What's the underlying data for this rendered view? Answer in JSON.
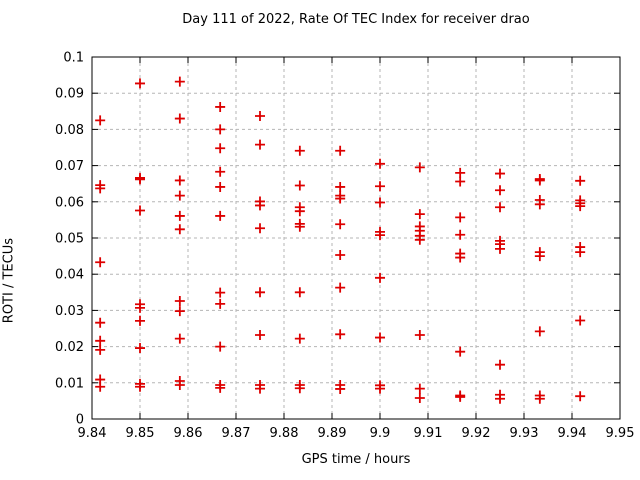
{
  "title": "Day 111 of 2022, Rate Of TEC Index for receiver drao",
  "chart_data": {
    "type": "scatter",
    "title": "Day 111 of 2022, Rate Of TEC Index for receiver drao",
    "xlabel": "GPS time / hours",
    "ylabel": "ROTI / TECUs",
    "xlim": [
      9.84,
      9.95
    ],
    "ylim": [
      0,
      0.1
    ],
    "x_ticks": [
      "9.84",
      "9.85",
      "9.86",
      "9.87",
      "9.88",
      "9.89",
      "9.9",
      "9.91",
      "9.92",
      "9.93",
      "9.94",
      "9.95"
    ],
    "y_ticks": [
      "0",
      "0.01",
      "0.02",
      "0.03",
      "0.04",
      "0.05",
      "0.06",
      "0.07",
      "0.08",
      "0.09",
      "0.1"
    ],
    "grid": true,
    "legend": "none",
    "marker": "plus",
    "marker_color": "#dd0000",
    "grid_color": "#b5b5b5",
    "series": [
      {
        "name": "ROTI",
        "points": [
          [
            9.8417,
            0.0825
          ],
          [
            9.8417,
            0.0646
          ],
          [
            9.8417,
            0.0637
          ],
          [
            9.8417,
            0.0433
          ],
          [
            9.8417,
            0.0266
          ],
          [
            9.8417,
            0.0216
          ],
          [
            9.8417,
            0.0191
          ],
          [
            9.8417,
            0.0109
          ],
          [
            9.8417,
            0.0089
          ],
          [
            9.85,
            0.0927
          ],
          [
            9.85,
            0.0666
          ],
          [
            9.85,
            0.0662
          ],
          [
            9.85,
            0.0576
          ],
          [
            9.85,
            0.0317
          ],
          [
            9.85,
            0.0307
          ],
          [
            9.85,
            0.0271
          ],
          [
            9.85,
            0.0196
          ],
          [
            9.85,
            0.0097
          ],
          [
            9.85,
            0.0089
          ],
          [
            9.8583,
            0.0932
          ],
          [
            9.8583,
            0.083
          ],
          [
            9.8583,
            0.0659
          ],
          [
            9.8583,
            0.0617
          ],
          [
            9.8583,
            0.0561
          ],
          [
            9.8583,
            0.0524
          ],
          [
            9.8583,
            0.0326
          ],
          [
            9.8583,
            0.0298
          ],
          [
            9.8583,
            0.0222
          ],
          [
            9.8583,
            0.0105
          ],
          [
            9.8583,
            0.0094
          ],
          [
            9.8667,
            0.0862
          ],
          [
            9.8667,
            0.08
          ],
          [
            9.8667,
            0.0748
          ],
          [
            9.8667,
            0.0683
          ],
          [
            9.8667,
            0.0641
          ],
          [
            9.8667,
            0.0561
          ],
          [
            9.8667,
            0.0349
          ],
          [
            9.8667,
            0.0318
          ],
          [
            9.8667,
            0.02
          ],
          [
            9.8667,
            0.0094
          ],
          [
            9.8667,
            0.0086
          ],
          [
            9.875,
            0.0837
          ],
          [
            9.875,
            0.0758
          ],
          [
            9.875,
            0.0601
          ],
          [
            9.875,
            0.059
          ],
          [
            9.875,
            0.0527
          ],
          [
            9.875,
            0.035
          ],
          [
            9.875,
            0.0232
          ],
          [
            9.875,
            0.0094
          ],
          [
            9.875,
            0.0084
          ],
          [
            9.8833,
            0.0741
          ],
          [
            9.8833,
            0.0645
          ],
          [
            9.8833,
            0.0585
          ],
          [
            9.8833,
            0.0574
          ],
          [
            9.8833,
            0.0539
          ],
          [
            9.8833,
            0.0531
          ],
          [
            9.8833,
            0.035
          ],
          [
            9.8833,
            0.0222
          ],
          [
            9.8833,
            0.0094
          ],
          [
            9.8833,
            0.0085
          ],
          [
            9.8917,
            0.0741
          ],
          [
            9.8917,
            0.0641
          ],
          [
            9.8917,
            0.0617
          ],
          [
            9.8917,
            0.0609
          ],
          [
            9.8917,
            0.0538
          ],
          [
            9.8917,
            0.0453
          ],
          [
            9.8917,
            0.0363
          ],
          [
            9.8917,
            0.0234
          ],
          [
            9.8917,
            0.0094
          ],
          [
            9.8917,
            0.0083
          ],
          [
            9.9,
            0.0705
          ],
          [
            9.9,
            0.0643
          ],
          [
            9.9,
            0.0598
          ],
          [
            9.9,
            0.0517
          ],
          [
            9.9,
            0.0508
          ],
          [
            9.9,
            0.039
          ],
          [
            9.9,
            0.0225
          ],
          [
            9.9,
            0.0093
          ],
          [
            9.9,
            0.0084
          ],
          [
            9.9083,
            0.0695
          ],
          [
            9.9083,
            0.0566
          ],
          [
            9.9083,
            0.0532
          ],
          [
            9.9083,
            0.052
          ],
          [
            9.9083,
            0.0506
          ],
          [
            9.9083,
            0.0495
          ],
          [
            9.9083,
            0.0232
          ],
          [
            9.9083,
            0.0084
          ],
          [
            9.9083,
            0.0058
          ],
          [
            9.9167,
            0.068
          ],
          [
            9.9167,
            0.0656
          ],
          [
            9.9167,
            0.0557
          ],
          [
            9.9167,
            0.0509
          ],
          [
            9.9167,
            0.0457
          ],
          [
            9.9167,
            0.0446
          ],
          [
            9.9167,
            0.0186
          ],
          [
            9.9167,
            0.0065
          ],
          [
            9.9167,
            0.0061
          ],
          [
            9.925,
            0.0678
          ],
          [
            9.925,
            0.0632
          ],
          [
            9.925,
            0.0585
          ],
          [
            9.925,
            0.0492
          ],
          [
            9.925,
            0.0483
          ],
          [
            9.925,
            0.047
          ],
          [
            9.925,
            0.015
          ],
          [
            9.925,
            0.0067
          ],
          [
            9.925,
            0.0056
          ],
          [
            9.9333,
            0.0663
          ],
          [
            9.9333,
            0.0659
          ],
          [
            9.9333,
            0.0605
          ],
          [
            9.9333,
            0.0593
          ],
          [
            9.9333,
            0.0461
          ],
          [
            9.9333,
            0.045
          ],
          [
            9.9333,
            0.0242
          ],
          [
            9.9333,
            0.0065
          ],
          [
            9.9333,
            0.0056
          ],
          [
            9.9417,
            0.0658
          ],
          [
            9.9417,
            0.0604
          ],
          [
            9.9417,
            0.0596
          ],
          [
            9.9417,
            0.0588
          ],
          [
            9.9417,
            0.0475
          ],
          [
            9.9417,
            0.0461
          ],
          [
            9.9417,
            0.0272
          ],
          [
            9.9417,
            0.0063
          ]
        ]
      }
    ]
  }
}
